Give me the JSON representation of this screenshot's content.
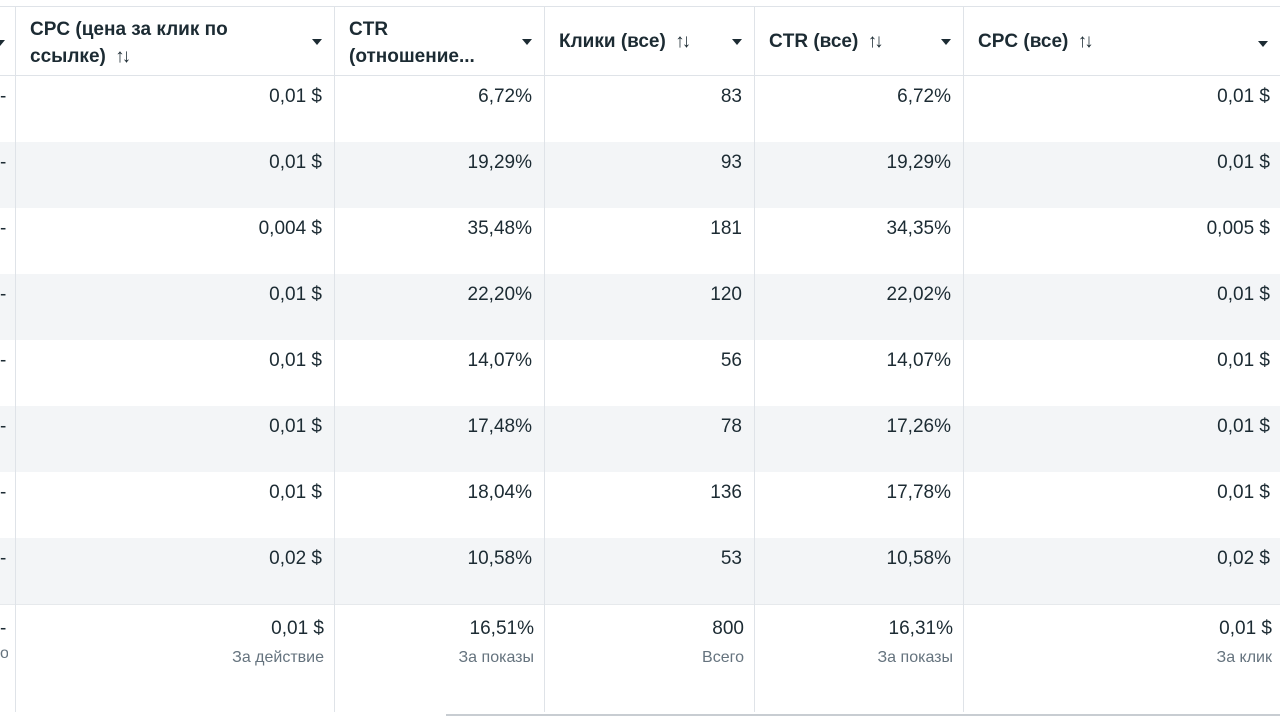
{
  "columns": [
    {
      "label": "CPC (цена за клик по ссылке)",
      "sort": "↑↓"
    },
    {
      "label": "CTR (отношение..."
    },
    {
      "label": "Клики (все)",
      "sort": "↑↓"
    },
    {
      "label": "CTR (все)",
      "sort": "↑↓"
    },
    {
      "label": "CPC (все)",
      "sort": "↑↓"
    }
  ],
  "rows": [
    {
      "lead": "-",
      "cpc_link": "0,01 $",
      "ctr_link": "6,72%",
      "clicks_all": "83",
      "ctr_all": "6,72%",
      "cpc_all": "0,01 $"
    },
    {
      "lead": "-",
      "cpc_link": "0,01 $",
      "ctr_link": "19,29%",
      "clicks_all": "93",
      "ctr_all": "19,29%",
      "cpc_all": "0,01 $"
    },
    {
      "lead": "-",
      "cpc_link": "0,004 $",
      "ctr_link": "35,48%",
      "clicks_all": "181",
      "ctr_all": "34,35%",
      "cpc_all": "0,005 $"
    },
    {
      "lead": "-",
      "cpc_link": "0,01 $",
      "ctr_link": "22,20%",
      "clicks_all": "120",
      "ctr_all": "22,02%",
      "cpc_all": "0,01 $"
    },
    {
      "lead": "-",
      "cpc_link": "0,01 $",
      "ctr_link": "14,07%",
      "clicks_all": "56",
      "ctr_all": "14,07%",
      "cpc_all": "0,01 $"
    },
    {
      "lead": "-",
      "cpc_link": "0,01 $",
      "ctr_link": "17,48%",
      "clicks_all": "78",
      "ctr_all": "17,26%",
      "cpc_all": "0,01 $"
    },
    {
      "lead": "-",
      "cpc_link": "0,01 $",
      "ctr_link": "18,04%",
      "clicks_all": "136",
      "ctr_all": "17,78%",
      "cpc_all": "0,01 $"
    },
    {
      "lead": "-",
      "cpc_link": "0,02 $",
      "ctr_link": "10,58%",
      "clicks_all": "53",
      "ctr_all": "10,58%",
      "cpc_all": "0,02 $"
    }
  ],
  "totals": {
    "lead": "-",
    "lead_sub": "о",
    "cpc_link": {
      "value": "0,01 $",
      "sub": "За действие"
    },
    "ctr_link": {
      "value": "16,51%",
      "sub": "За показы"
    },
    "clicks_all": {
      "value": "800",
      "sub": "Всего"
    },
    "ctr_all": {
      "value": "16,31%",
      "sub": "За показы"
    },
    "cpc_all": {
      "value": "0,01 $",
      "sub": "За клик"
    }
  },
  "colors": {
    "text": "#1c2b33",
    "muted": "#65737e",
    "stripe": "#f3f5f7",
    "border": "#dfe3e8"
  },
  "icons": [
    "sort-icon",
    "caret-down-icon"
  ]
}
